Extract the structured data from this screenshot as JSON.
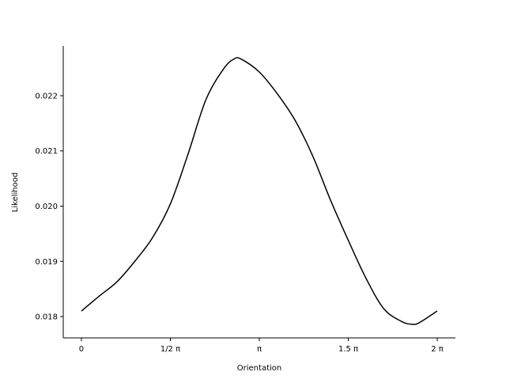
{
  "chart_data": {
    "type": "line",
    "title": "",
    "xlabel": "Orientation",
    "ylabel": "Likelihood",
    "x_unit": "pi",
    "xlim": [
      -0.102,
      2.102
    ],
    "ylim": [
      0.017613,
      0.022903
    ],
    "grid": false,
    "x_ticks": [
      {
        "value": 0,
        "label": "0"
      },
      {
        "value": 0.5,
        "label": "1/2 π"
      },
      {
        "value": 1,
        "label": "π"
      },
      {
        "value": 1.5,
        "label": "1.5 π"
      },
      {
        "value": 2,
        "label": "2 π"
      }
    ],
    "y_ticks": [
      {
        "value": 0.018,
        "label": "0.018"
      },
      {
        "value": 0.019,
        "label": "0.019"
      },
      {
        "value": 0.02,
        "label": "0.020"
      },
      {
        "value": 0.021,
        "label": "0.021"
      },
      {
        "value": 0.022,
        "label": "0.022"
      }
    ],
    "series": [
      {
        "name": "likelihood",
        "color": "#000000",
        "x": [
          0,
          0.1,
          0.2,
          0.3,
          0.4,
          0.5,
          0.6,
          0.7,
          0.8,
          0.86,
          0.9,
          1.0,
          1.1,
          1.2,
          1.3,
          1.4,
          1.5,
          1.6,
          1.7,
          1.8,
          1.86,
          1.9,
          2.0
        ],
        "y": [
          0.0181,
          0.01837,
          0.01863,
          0.019,
          0.01943,
          0.02004,
          0.02095,
          0.02193,
          0.02249,
          0.02267,
          0.02266,
          0.02243,
          0.02204,
          0.02156,
          0.02091,
          0.02011,
          0.01938,
          0.01869,
          0.01814,
          0.01791,
          0.01786,
          0.01789,
          0.0181
        ]
      }
    ]
  }
}
